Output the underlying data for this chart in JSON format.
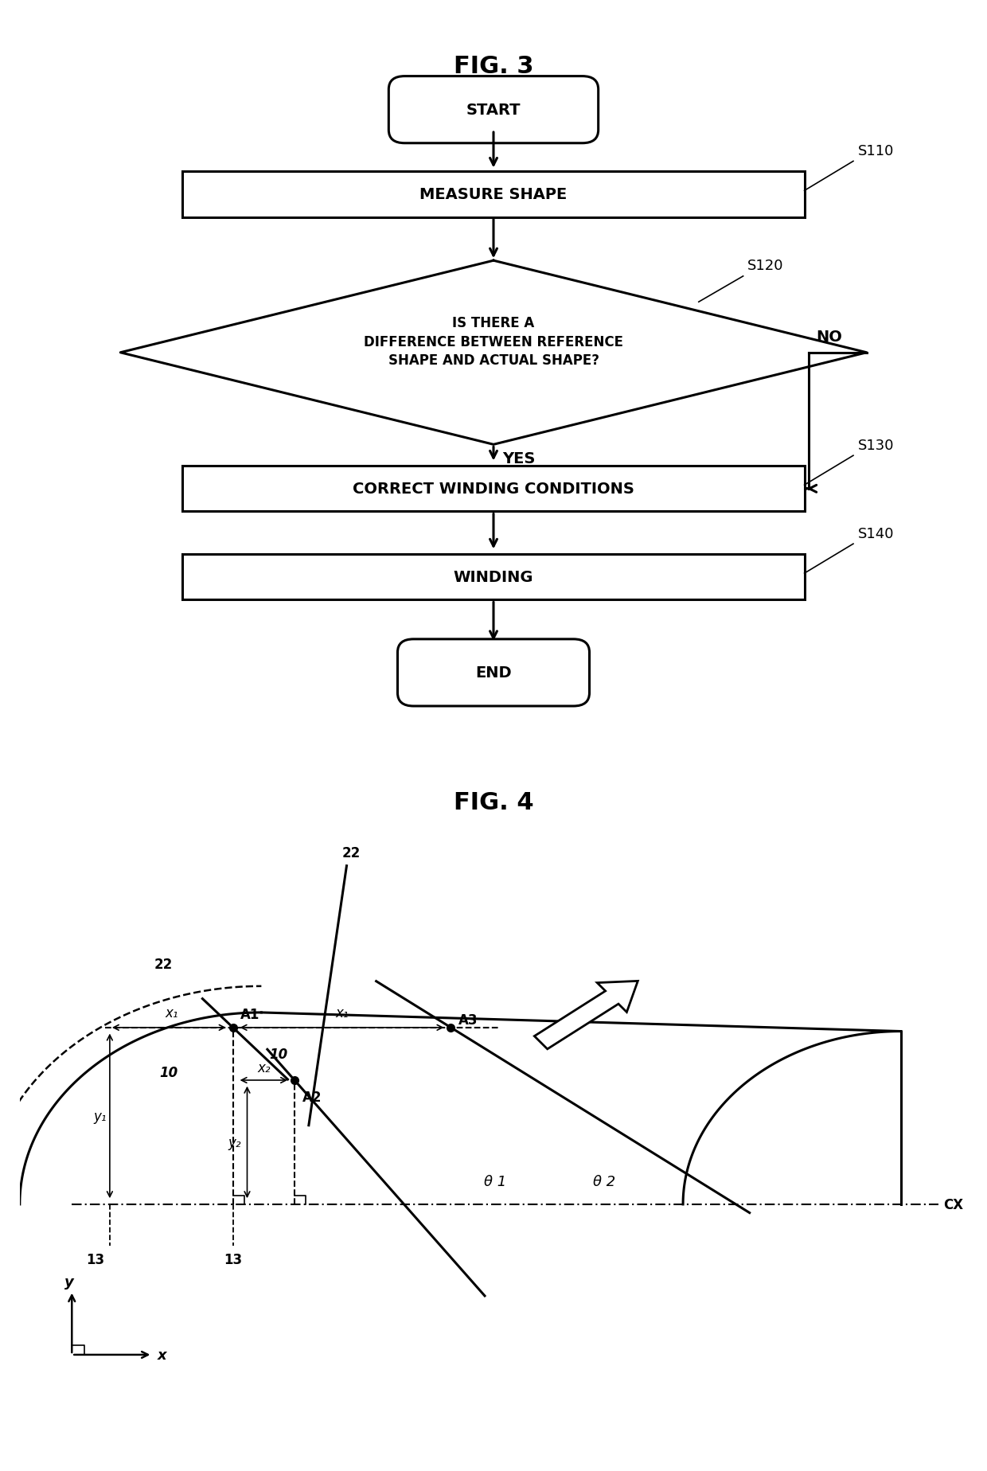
{
  "fig_title_3": "FIG. 3",
  "fig_title_4": "FIG. 4",
  "bg_color": "#ffffff",
  "flowchart": {
    "start_text": "START",
    "step1_text": "MEASURE SHAPE",
    "step1_label": "S110",
    "decision_text": "IS THERE A\nDIFFERENCE BETWEEN REFERENCE\nSHAPE AND ACTUAL SHAPE?",
    "decision_label": "S120",
    "no_text": "NO",
    "yes_text": "YES",
    "step3_text": "CORRECT WINDING CONDITIONS",
    "step3_label": "S130",
    "step4_text": "WINDING",
    "step4_label": "S140",
    "end_text": "END"
  }
}
